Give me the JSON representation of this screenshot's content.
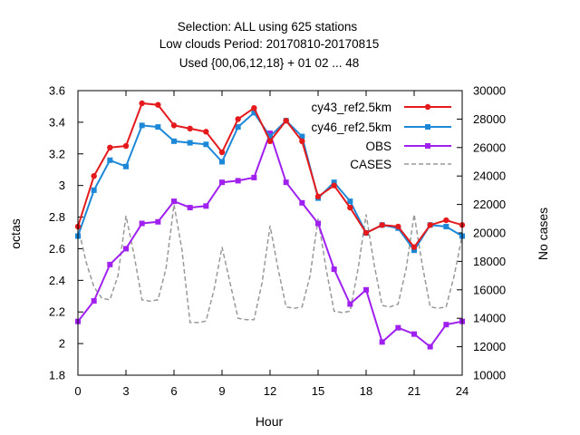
{
  "chart_data": {
    "type": "line",
    "title": [
      "Selection: ALL using   625 stations",
      "Low clouds   Period: 20170810-20170815",
      "Used {00,06,12,18} + 01 02 ... 48"
    ],
    "xlabel": "Hour",
    "ylabel": "octas",
    "y2label": "No cases",
    "xlim": [
      0,
      24
    ],
    "ylim": [
      1.8,
      3.6
    ],
    "y2lim": [
      10000,
      30000
    ],
    "xticks": [
      "0",
      "3",
      "6",
      "9",
      "12",
      "15",
      "18",
      "21",
      "24"
    ],
    "yticks": [
      "1.8",
      "2",
      "2.2",
      "2.4",
      "2.6",
      "2.8",
      "3",
      "3.2",
      "3.4",
      "3.6"
    ],
    "y2ticks": [
      "10000",
      "12000",
      "14000",
      "16000",
      "18000",
      "20000",
      "22000",
      "24000",
      "26000",
      "28000",
      "30000"
    ],
    "grid": false,
    "legend_position": "top-right",
    "series": [
      {
        "name": "cy43_ref2.5km",
        "color": "#e41a1c",
        "marker": "filled-circle",
        "axis": "left",
        "x": [
          0,
          1,
          2,
          3,
          4,
          5,
          6,
          7,
          8,
          9,
          10,
          11,
          12,
          13,
          14,
          15,
          16,
          17,
          18,
          19,
          20,
          21,
          22,
          23,
          24
        ],
        "values": [
          2.74,
          3.06,
          3.24,
          3.25,
          3.52,
          3.51,
          3.38,
          3.36,
          3.34,
          3.21,
          3.42,
          3.49,
          3.28,
          3.41,
          3.28,
          2.93,
          3.0,
          2.86,
          2.7,
          2.75,
          2.74,
          2.61,
          2.75,
          2.78,
          2.75
        ]
      },
      {
        "name": "cy46_ref2.5km",
        "color": "#1e88d8",
        "marker": "filled-square",
        "axis": "left",
        "x": [
          0,
          1,
          2,
          3,
          4,
          5,
          6,
          7,
          8,
          9,
          10,
          11,
          12,
          13,
          14,
          15,
          16,
          17,
          18,
          19,
          20,
          21,
          22,
          23,
          24
        ],
        "values": [
          2.68,
          2.97,
          3.16,
          3.12,
          3.38,
          3.37,
          3.28,
          3.27,
          3.26,
          3.15,
          3.37,
          3.46,
          3.31,
          3.41,
          3.31,
          2.92,
          3.02,
          2.9,
          2.7,
          2.75,
          2.73,
          2.59,
          2.75,
          2.74,
          2.68
        ]
      },
      {
        "name": "OBS",
        "color": "#a020f0",
        "marker": "filled-square",
        "axis": "left",
        "x": [
          0,
          1,
          2,
          3,
          4,
          5,
          6,
          7,
          8,
          9,
          10,
          11,
          12,
          13,
          14,
          15,
          16,
          17,
          18,
          19,
          20,
          21,
          22,
          23,
          24
        ],
        "values": [
          2.14,
          2.27,
          2.5,
          2.6,
          2.76,
          2.77,
          2.9,
          2.86,
          2.87,
          3.02,
          3.03,
          3.05,
          3.33,
          3.02,
          2.89,
          2.76,
          2.47,
          2.25,
          2.34,
          2.01,
          2.1,
          2.06,
          1.98,
          2.12,
          2.14
        ]
      },
      {
        "name": "CASES",
        "color": "#999999",
        "dashed": true,
        "axis": "right",
        "x": [
          0,
          0.5,
          1,
          1.5,
          2,
          2.5,
          3,
          3.5,
          4,
          4.5,
          5,
          5.5,
          6,
          6.5,
          7,
          7.5,
          8,
          8.5,
          9,
          9.5,
          10,
          10.5,
          11,
          11.5,
          12,
          12.5,
          13,
          13.5,
          14,
          14.5,
          15,
          15.5,
          16,
          16.5,
          17,
          17.5,
          18,
          18.5,
          19,
          19.5,
          20,
          20.5,
          21,
          21.5,
          22,
          22.5,
          23,
          23.5,
          24
        ],
        "values": [
          20500,
          18000,
          16200,
          15400,
          15300,
          17000,
          21200,
          18500,
          15300,
          15200,
          15300,
          17500,
          22000,
          18800,
          13700,
          13700,
          13800,
          16000,
          19000,
          16500,
          14000,
          13900,
          13900,
          16500,
          20500,
          17500,
          14800,
          14700,
          14800,
          17000,
          21000,
          17500,
          14500,
          14400,
          14500,
          17500,
          21300,
          17800,
          14900,
          14800,
          15000,
          17500,
          21300,
          17800,
          14800,
          14700,
          14800,
          17000,
          19800
        ]
      }
    ]
  }
}
